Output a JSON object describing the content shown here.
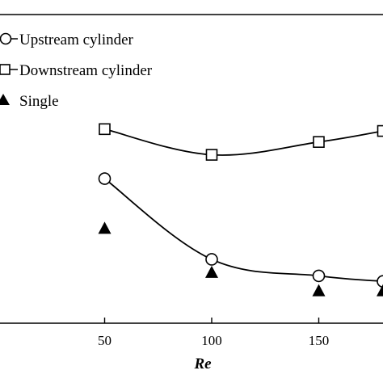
{
  "chart_data": {
    "type": "line",
    "title": "",
    "xlabel": "Re",
    "ylabel": "",
    "xlim": [
      0,
      180
    ],
    "ylim": [
      0,
      1
    ],
    "x_ticks": [
      50,
      100,
      150
    ],
    "x_tick_labels": [
      "50",
      "100",
      "150"
    ],
    "legend_position": "top-left",
    "series": [
      {
        "name": "Upstream cylinder",
        "marker": "open-circle",
        "line": "smooth",
        "x": [
          50,
          100,
          150,
          180
        ],
        "y": [
          0.7,
          0.26,
          0.17,
          0.14
        ]
      },
      {
        "name": "Downstream cylinder",
        "marker": "open-square",
        "line": "smooth",
        "x": [
          50,
          100,
          150,
          180
        ],
        "y": [
          0.97,
          0.83,
          0.9,
          0.96
        ]
      },
      {
        "name": "Single",
        "marker": "filled-triangle",
        "line": "none",
        "x": [
          50,
          100,
          150,
          180
        ],
        "y": [
          0.43,
          0.19,
          0.09,
          0.09
        ]
      }
    ]
  },
  "colors": {
    "line": "#000000",
    "background": "#ffffff"
  }
}
